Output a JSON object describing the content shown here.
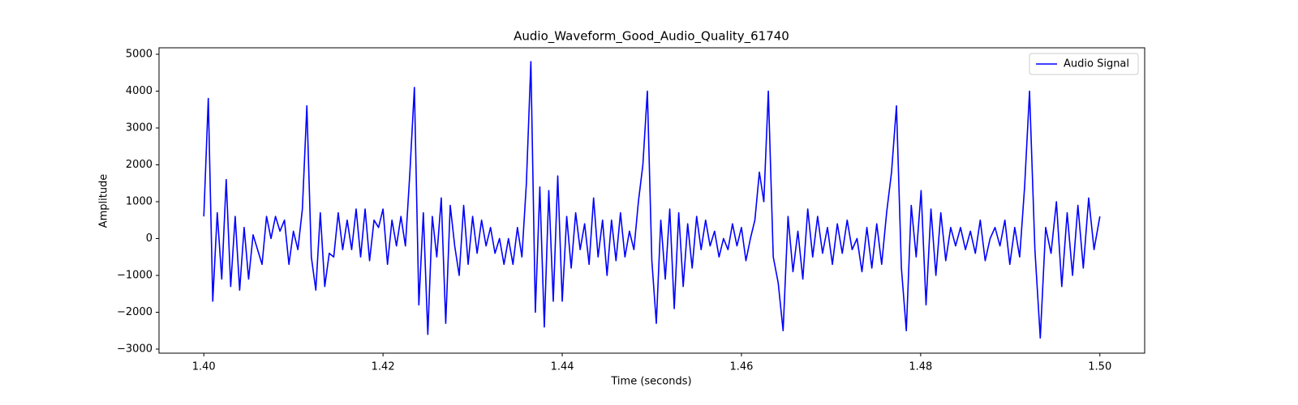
{
  "chart_data": {
    "type": "line",
    "title": "Audio_Waveform_Good_Audio_Quality_61740",
    "x_label": "Time (seconds)",
    "y_label": "Amplitude",
    "legend": "upper right",
    "grid": false,
    "xlim": [
      1.395,
      1.505
    ],
    "ylim": [
      -3110,
      5176
    ],
    "xticks": [
      {
        "value": 1.4,
        "label": "1.40"
      },
      {
        "value": 1.42,
        "label": "1.42"
      },
      {
        "value": 1.44,
        "label": "1.44"
      },
      {
        "value": 1.46,
        "label": "1.46"
      },
      {
        "value": 1.48,
        "label": "1.48"
      },
      {
        "value": 1.5,
        "label": "1.50"
      }
    ],
    "yticks": [
      {
        "value": -3000,
        "label": "−3000"
      },
      {
        "value": -2000,
        "label": "−2000"
      },
      {
        "value": -1000,
        "label": "−1000"
      },
      0,
      1000,
      2000,
      3000,
      4000,
      5000
    ],
    "x": [
      1.4,
      1.4005,
      1.401,
      1.4015,
      1.402,
      1.4025,
      1.403,
      1.4035,
      1.404,
      1.4045,
      1.405,
      1.4055,
      1.406,
      1.4065,
      1.407,
      1.4075,
      1.408,
      1.4085,
      1.409,
      1.4095,
      1.41,
      1.4105,
      1.411,
      1.4115,
      1.412,
      1.4125,
      1.413,
      1.4135,
      1.414,
      1.4145,
      1.415,
      1.4155,
      1.416,
      1.4165,
      1.417,
      1.4175,
      1.418,
      1.4185,
      1.419,
      1.4195,
      1.42,
      1.4205,
      1.421,
      1.4215,
      1.422,
      1.4225,
      1.423,
      1.4235,
      1.424,
      1.4245,
      1.425,
      1.4255,
      1.426,
      1.4265,
      1.427,
      1.4275,
      1.428,
      1.4285,
      1.429,
      1.4295,
      1.43,
      1.4305,
      1.431,
      1.4315,
      1.432,
      1.4325,
      1.433,
      1.4335,
      1.434,
      1.4345,
      1.435,
      1.4355,
      1.436,
      1.4365,
      1.437,
      1.4375,
      1.438,
      1.4385,
      1.439,
      1.4395,
      1.44,
      1.4405,
      1.441,
      1.4415,
      1.442,
      1.4425,
      1.443,
      1.4435,
      1.444,
      1.4445,
      1.445,
      1.4455,
      1.446,
      1.4465,
      1.447,
      1.4475,
      1.448,
      1.4485,
      1.449,
      1.4495,
      1.45,
      1.4505,
      1.451,
      1.4515,
      1.452,
      1.4525,
      1.453,
      1.4535,
      1.454,
      1.4545,
      1.455,
      1.4555,
      1.456,
      1.4565,
      1.457,
      1.4575,
      1.458,
      1.4585,
      1.459,
      1.4595,
      1.46,
      1.4605,
      1.461,
      1.4615,
      1.462,
      1.4625,
      1.463,
      1.46355,
      1.4641,
      1.46465,
      1.4652,
      1.46575,
      1.4663,
      1.46685,
      1.4674,
      1.46795,
      1.4685,
      1.46905,
      1.4696,
      1.47015,
      1.4707,
      1.47125,
      1.4718,
      1.47235,
      1.4729,
      1.47345,
      1.474,
      1.47455,
      1.4751,
      1.47565,
      1.4762,
      1.47675,
      1.4773,
      1.47785,
      1.4784,
      1.47895,
      1.4795,
      1.48005,
      1.4806,
      1.48115,
      1.4817,
      1.48225,
      1.4828,
      1.48335,
      1.4839,
      1.48445,
      1.485,
      1.48555,
      1.4861,
      1.48665,
      1.4872,
      1.48775,
      1.4883,
      1.48885,
      1.4894,
      1.48995,
      1.4905,
      1.49105,
      1.4916,
      1.49215,
      1.49275,
      1.49335,
      1.49395,
      1.49455,
      1.49515,
      1.49575,
      1.49635,
      1.49695,
      1.49755,
      1.49815,
      1.49875,
      1.49935,
      1.5
    ],
    "series": [
      {
        "name": "Audio Signal",
        "color": "#0000ff",
        "values": [
          600,
          3800,
          -1700,
          700,
          -1100,
          1600,
          -1300,
          600,
          -1400,
          300,
          -1100,
          100,
          -300,
          -700,
          600,
          0,
          600,
          200,
          500,
          -700,
          200,
          -300,
          800,
          3600,
          -500,
          -1400,
          700,
          -1300,
          -400,
          -500,
          700,
          -300,
          500,
          -300,
          800,
          -500,
          800,
          -600,
          500,
          300,
          800,
          -700,
          500,
          -200,
          600,
          -200,
          1800,
          4100,
          -1800,
          700,
          -2600,
          600,
          -500,
          1100,
          -2300,
          900,
          -200,
          -1000,
          900,
          -700,
          600,
          -400,
          500,
          -200,
          300,
          -400,
          0,
          -700,
          0,
          -700,
          300,
          -500,
          1500,
          4800,
          -2000,
          1400,
          -2400,
          1300,
          -1700,
          1700,
          -1700,
          600,
          -800,
          700,
          -300,
          400,
          -700,
          1100,
          -500,
          500,
          -1000,
          500,
          -600,
          700,
          -500,
          200,
          -300,
          1000,
          2000,
          4000,
          -600,
          -2300,
          500,
          -1100,
          800,
          -1900,
          700,
          -1300,
          400,
          -800,
          600,
          -300,
          500,
          -200,
          200,
          -500,
          0,
          -300,
          400,
          -200,
          300,
          -600,
          0,
          500,
          1800,
          1000,
          4000,
          -500,
          -1200,
          -2500,
          600,
          -900,
          200,
          -1100,
          800,
          -500,
          600,
          -400,
          300,
          -700,
          400,
          -400,
          500,
          -300,
          0,
          -900,
          300,
          -800,
          400,
          -700,
          700,
          1800,
          3600,
          -800,
          -2500,
          900,
          -500,
          1300,
          -1800,
          800,
          -1000,
          700,
          -600,
          300,
          -200,
          300,
          -300,
          200,
          -400,
          500,
          -600,
          0,
          300,
          -200,
          500,
          -700,
          300,
          -500,
          1400,
          4000,
          -300,
          -2700,
          300,
          -400,
          1000,
          -1300,
          700,
          -1000,
          900,
          -800,
          1100,
          -300,
          600
        ]
      }
    ]
  }
}
